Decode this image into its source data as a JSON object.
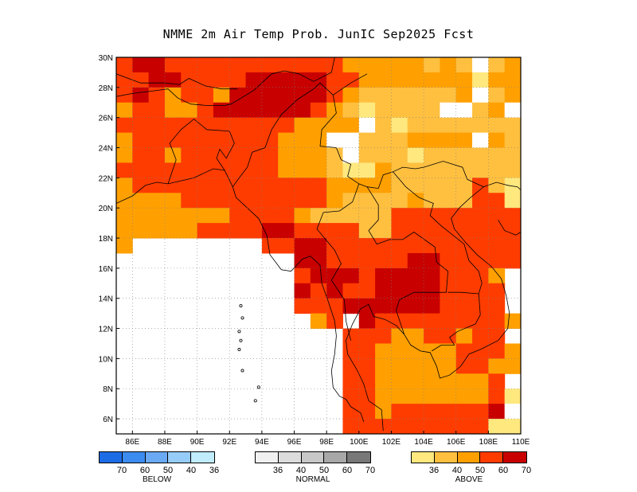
{
  "title": "NMME 2m Air Temp Prob. JunIC  Sep2025 Fcst",
  "map": {
    "lon_range": [
      85,
      110
    ],
    "lat_range": [
      5,
      30
    ],
    "lon_ticks": [
      "86E",
      "88E",
      "90E",
      "92E",
      "94E",
      "96E",
      "98E",
      "100E",
      "102E",
      "104E",
      "106E",
      "108E",
      "110E"
    ],
    "lat_ticks": [
      "6N",
      "8N",
      "10N",
      "12N",
      "14N",
      "16N",
      "18N",
      "20N",
      "22N",
      "24N",
      "26N",
      "28N",
      "30N"
    ],
    "grid": "dotted"
  },
  "palette": {
    "white": "#ffffff",
    "a36": "#ffe87e",
    "a40": "#ffc040",
    "a50": "#ffa000",
    "a60": "#ff3c00",
    "a70": "#c80000"
  },
  "legends": [
    {
      "name": "below",
      "caption": "BELOW",
      "colors": [
        "#1c6ce6",
        "#3c8cf0",
        "#6aaaf4",
        "#96ccf8",
        "#c0ecfc"
      ],
      "ticks": [
        "70",
        "60",
        "50",
        "40",
        "36"
      ]
    },
    {
      "name": "normal",
      "caption": "NORMAL",
      "colors": [
        "#f0f0f0",
        "#dcdcdc",
        "#c8c8c8",
        "#a8a8a8",
        "#787878"
      ],
      "ticks": [
        "36",
        "40",
        "50",
        "60",
        "70"
      ]
    },
    {
      "name": "above",
      "caption": "ABOVE",
      "colors": [
        "#ffe87e",
        "#ffc040",
        "#ffa000",
        "#ff3c00",
        "#c80000"
      ],
      "ticks": [
        "36",
        "40",
        "50",
        "60",
        "70"
      ]
    }
  ]
}
